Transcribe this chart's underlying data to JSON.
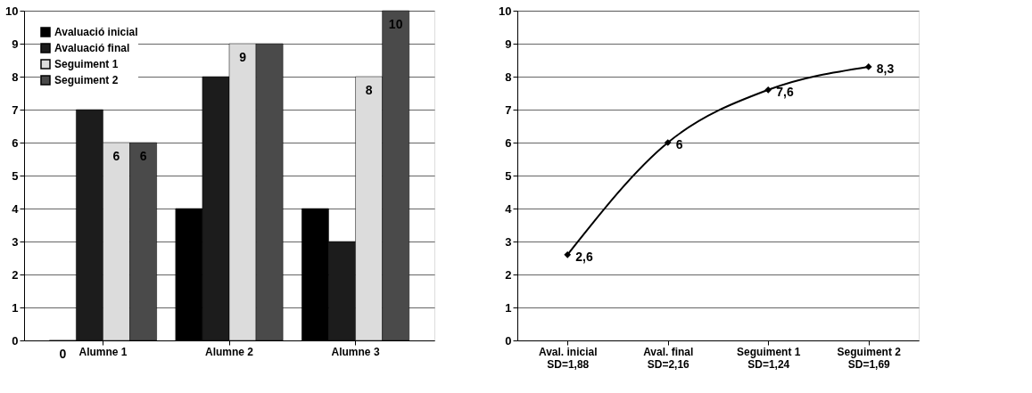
{
  "chart_data": [
    {
      "type": "bar",
      "categories": [
        "Alumne 1",
        "Alumne 2",
        "Alumne 3"
      ],
      "ylim": [
        0,
        10
      ],
      "yticks": [
        0,
        1,
        2,
        3,
        4,
        5,
        6,
        7,
        8,
        9,
        10
      ],
      "grid": "y",
      "legend": "top left",
      "series": [
        {
          "name": "Avaluació inicial",
          "color": "#000000",
          "values": [
            0,
            4,
            4
          ],
          "value_labels": [
            "0",
            null,
            null
          ]
        },
        {
          "name": "Avaluació final",
          "color": "#1c1c1c",
          "values": [
            7,
            8,
            3
          ],
          "value_labels": [
            null,
            null,
            null
          ]
        },
        {
          "name": "Seguiment 1",
          "color": "#dcdcdc",
          "values": [
            6,
            9,
            8
          ],
          "value_labels": [
            "6",
            "9",
            "8"
          ]
        },
        {
          "name": "Seguiment 2",
          "color": "#4a4a4a",
          "values": [
            6,
            9,
            10
          ],
          "value_labels": [
            "6",
            null,
            "10"
          ]
        }
      ]
    },
    {
      "type": "line",
      "categories": [
        "Aval. inicial\nSD=1,88",
        "Aval. final\nSD=2,16",
        "Seguiment 1\nSD=1,24",
        "Seguiment 2\nSD=1,69"
      ],
      "ylim": [
        0,
        10
      ],
      "yticks": [
        0,
        1,
        2,
        3,
        4,
        5,
        6,
        7,
        8,
        9,
        10
      ],
      "grid": "y",
      "marker": "diamond",
      "series": [
        {
          "color": "#000000",
          "values": [
            2.6,
            6,
            7.6,
            8.3
          ],
          "value_labels": [
            "2,6",
            "6",
            "7,6",
            "8,3"
          ]
        }
      ]
    }
  ]
}
